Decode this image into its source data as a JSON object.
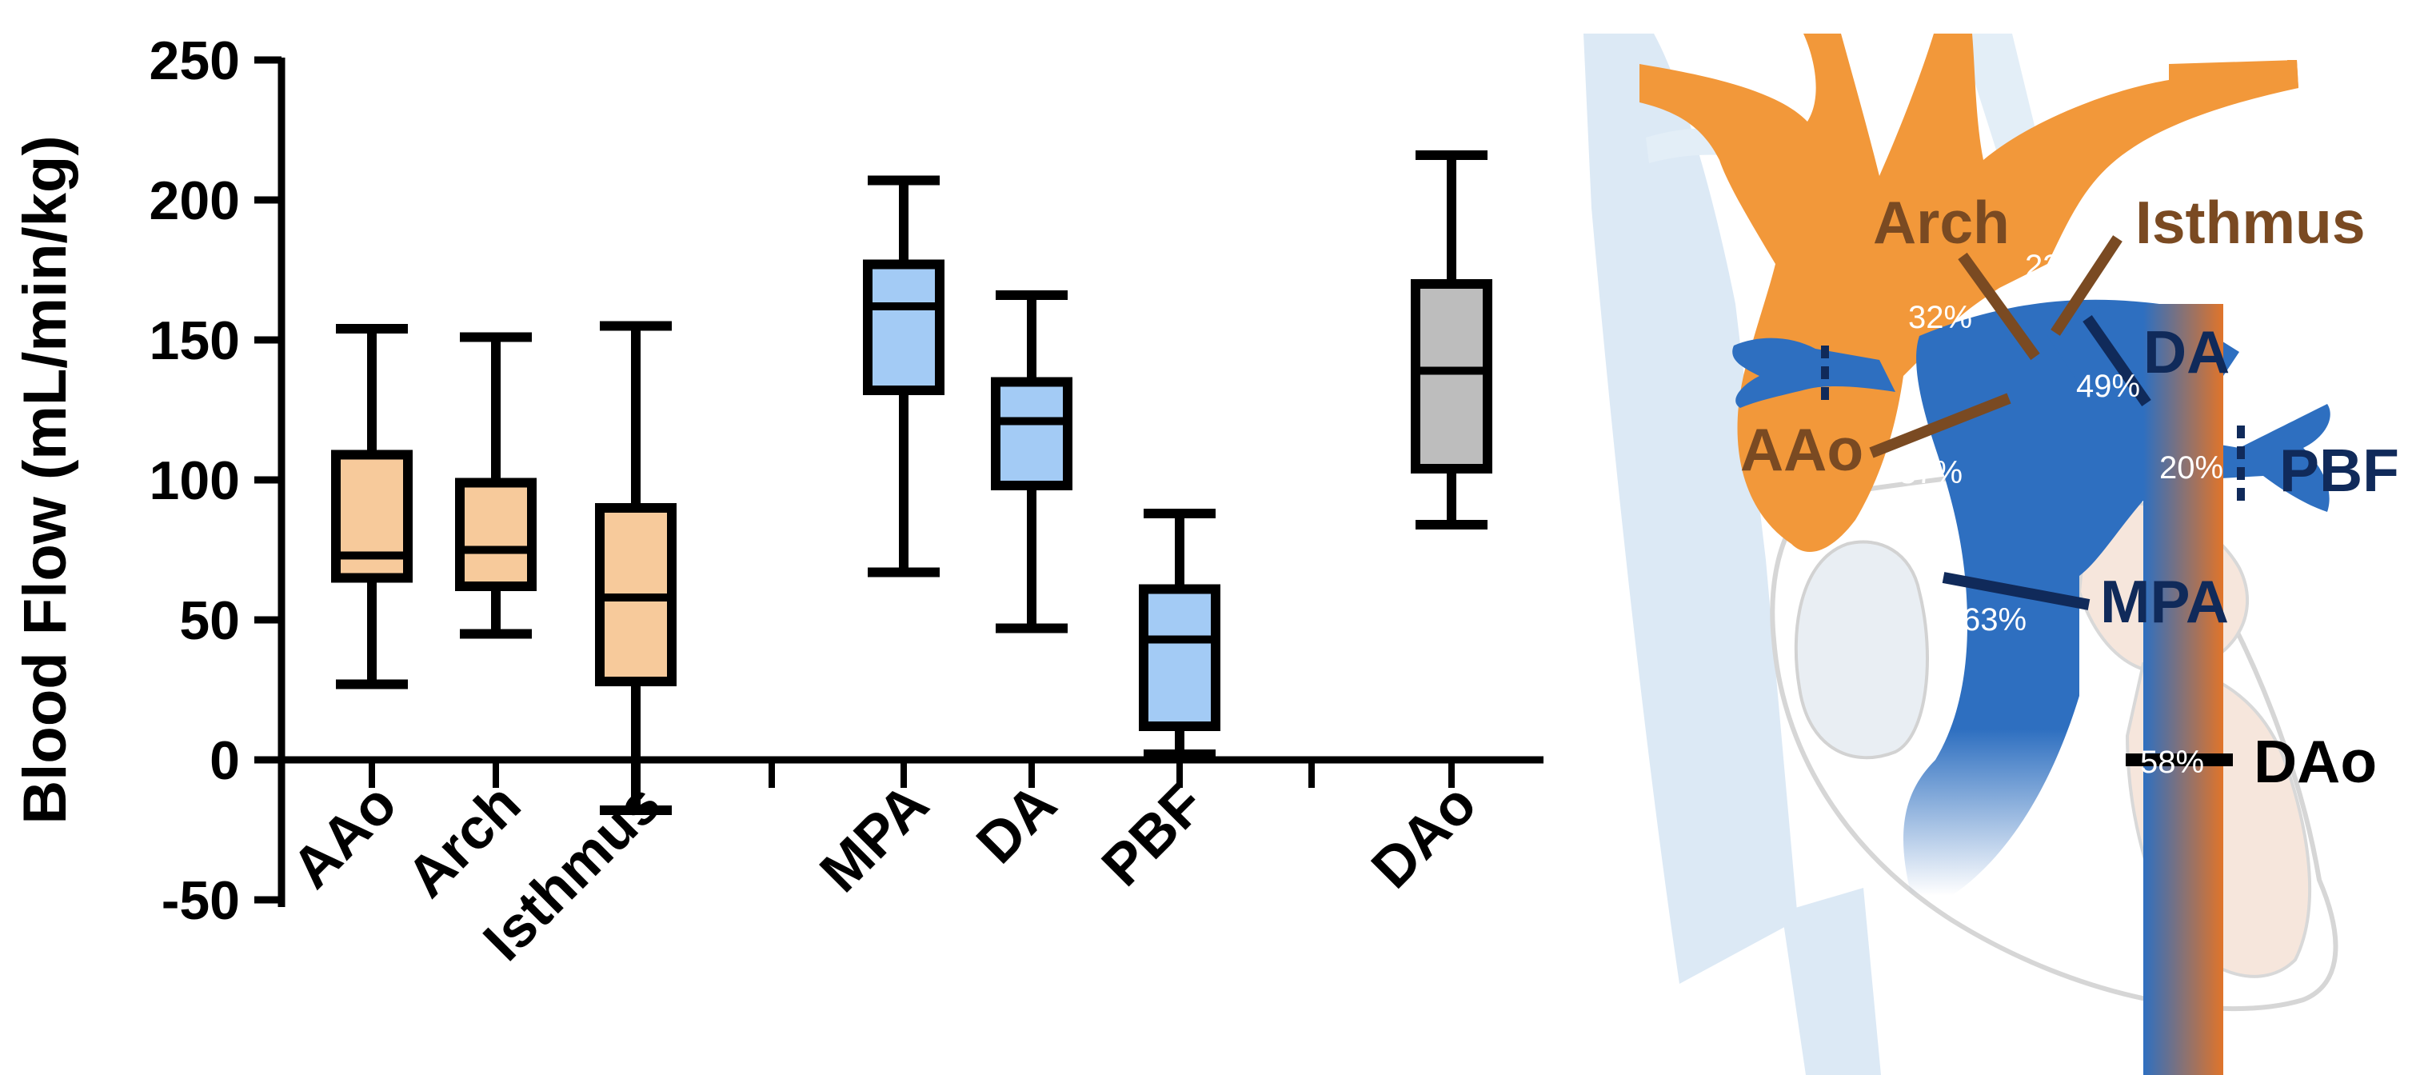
{
  "chart_data": {
    "type": "boxplot",
    "ylabel": "Blood Flow (mL/min/kg)",
    "ylim": [
      -50,
      250
    ],
    "yticks": [
      -50,
      0,
      50,
      100,
      150,
      200,
      250
    ],
    "grid": false,
    "colors": {
      "aorta_group": "#f7ca9b",
      "pulmonary_group": "#a3cbf5",
      "descending": "#bdbdbd"
    },
    "categories": [
      "AAo",
      "Arch",
      "Isthmus",
      "MPA",
      "DA",
      "PBF",
      "DAo"
    ],
    "series": [
      {
        "name": "AAo",
        "group": "aorta_group",
        "min": 27,
        "q1": 65,
        "median": 73,
        "q3": 109,
        "max": 154
      },
      {
        "name": "Arch",
        "group": "aorta_group",
        "min": 45,
        "q1": 62,
        "median": 75,
        "q3": 99,
        "max": 151
      },
      {
        "name": "Isthmus",
        "group": "aorta_group",
        "min": -18,
        "q1": 28,
        "median": 58,
        "q3": 90,
        "max": 155
      },
      {
        "name": "MPA",
        "group": "pulmonary_group",
        "min": 67,
        "q1": 132,
        "median": 162,
        "q3": 177,
        "max": 207
      },
      {
        "name": "DA",
        "group": "pulmonary_group",
        "min": 47,
        "q1": 98,
        "median": 121,
        "q3": 135,
        "max": 166
      },
      {
        "name": "PBF",
        "group": "pulmonary_group",
        "min": 2,
        "q1": 12,
        "median": 43,
        "q3": 61,
        "max": 88
      },
      {
        "name": "DAo",
        "group": "descending",
        "min": 84,
        "q1": 104,
        "median": 139,
        "q3": 170,
        "max": 216
      }
    ]
  },
  "diagram": {
    "vessel_labels": [
      {
        "id": "arch",
        "text": "Arch",
        "color": "#7a4a22"
      },
      {
        "id": "isthmus",
        "text": "Isthmus",
        "color": "#7a4a22"
      },
      {
        "id": "da",
        "text": "DA",
        "color": "#102a5a"
      },
      {
        "id": "aao",
        "text": "AAo",
        "color": "#7a4a22"
      },
      {
        "id": "pbf",
        "text": "PBF",
        "color": "#102a5a"
      },
      {
        "id": "mpa",
        "text": "MPA",
        "color": "#102a5a"
      },
      {
        "id": "dao",
        "text": "DAo",
        "color": "#000000"
      }
    ],
    "percentages": {
      "arch": "32%",
      "isthmus": "23%",
      "da": "49%",
      "aao": "37%",
      "pbf": "20%",
      "mpa": "63%",
      "dao": "58%"
    },
    "colors": {
      "aorta": "#f2983a",
      "pulmonary": "#2e6fc0",
      "venous": "#dce9f5"
    }
  }
}
